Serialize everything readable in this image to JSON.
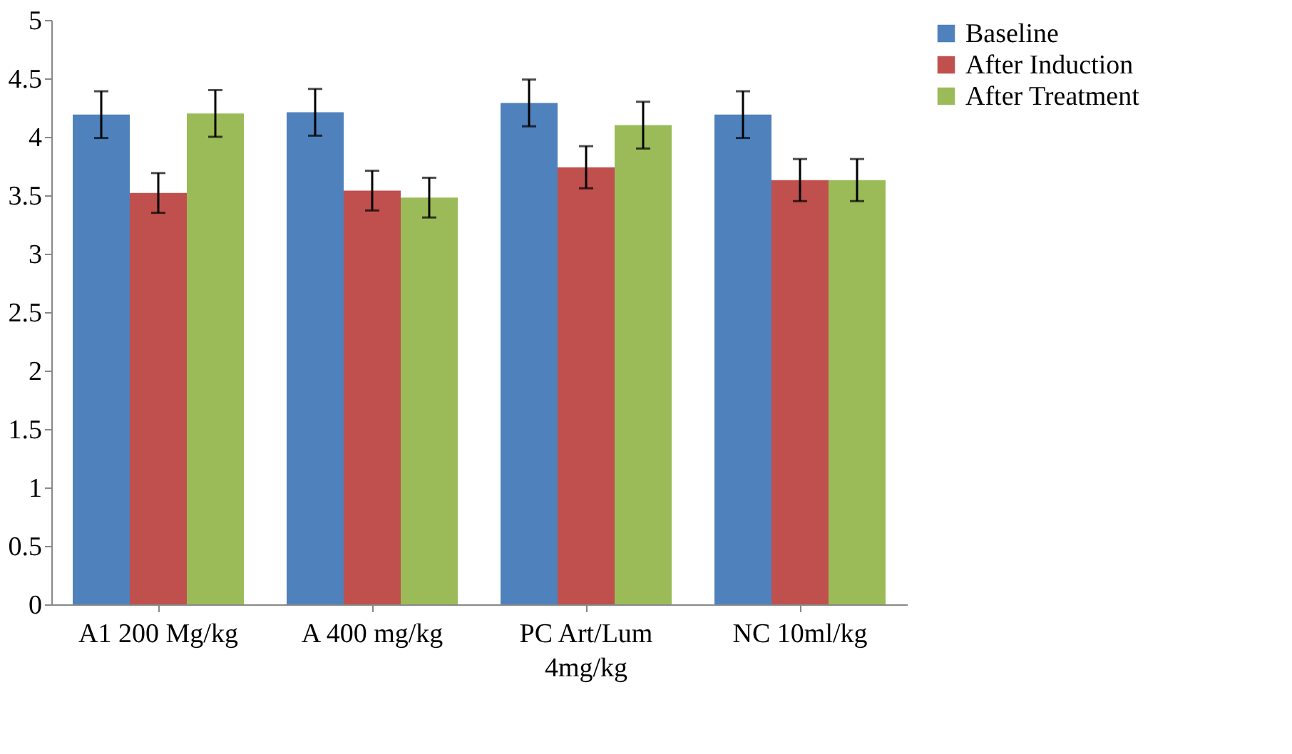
{
  "chart_data": {
    "type": "bar",
    "categories": [
      "A1 200 Mg/kg",
      "A 400 mg/kg",
      "PC Art/Lum\n4mg/kg",
      "NC 10ml/kg"
    ],
    "series": [
      {
        "name": "Baseline",
        "color": "#4f81bd",
        "values": [
          4.19,
          4.21,
          4.29,
          4.19
        ],
        "errors": [
          0.2,
          0.2,
          0.2,
          0.2
        ]
      },
      {
        "name": "After Induction",
        "color": "#c0504d",
        "values": [
          3.52,
          3.54,
          3.74,
          3.63
        ],
        "errors": [
          0.17,
          0.17,
          0.18,
          0.18
        ]
      },
      {
        "name": "After Treatment",
        "color": "#9bbb59",
        "values": [
          4.2,
          3.48,
          4.1,
          3.63
        ],
        "errors": [
          0.2,
          0.17,
          0.2,
          0.18
        ]
      }
    ],
    "ylim": [
      0,
      5
    ],
    "yticks": [
      0,
      0.5,
      1,
      1.5,
      2,
      2.5,
      3,
      3.5,
      4,
      4.5,
      5
    ],
    "grid": false,
    "legend": "right"
  }
}
